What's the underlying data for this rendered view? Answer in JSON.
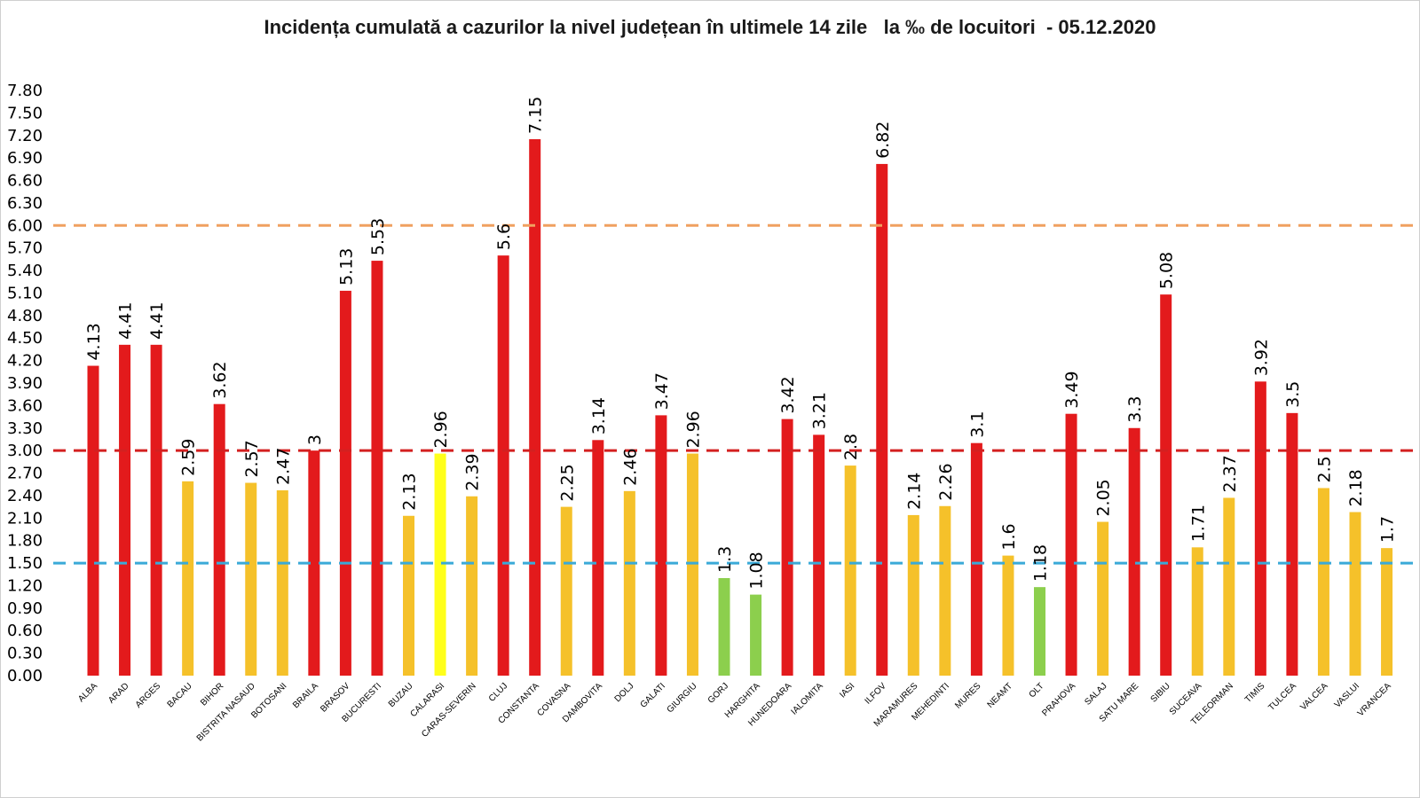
{
  "chart_data": {
    "type": "bar",
    "title": "Incidența cumulată a cazurilor la nivel județean în ultimele 14 zile   la ‰ de locuitori  - 05.12.2020",
    "xlabel": "",
    "ylabel": "",
    "ylim": [
      0,
      7.8
    ],
    "yticks": [
      "0.00",
      "0.30",
      "0.60",
      "0.90",
      "1.20",
      "1.50",
      "1.80",
      "2.10",
      "2.40",
      "2.70",
      "3.00",
      "3.30",
      "3.60",
      "3.90",
      "4.20",
      "4.50",
      "4.80",
      "5.10",
      "5.40",
      "5.70",
      "6.00",
      "6.30",
      "6.60",
      "6.90",
      "7.20",
      "7.50",
      "7.80"
    ],
    "grid": false,
    "categories": [
      "ALBA",
      "ARAD",
      "ARGES",
      "BACAU",
      "BIHOR",
      "BISTRITA NASAUD",
      "BOTOSANI",
      "BRAILA",
      "BRASOV",
      "BUCURESTI",
      "BUZAU",
      "CALARASI",
      "CARAS-SEVERIN",
      "CLUJ",
      "CONSTANTA",
      "COVASNA",
      "DAMBOVITA",
      "DOLJ",
      "GALATI",
      "GIURGIU",
      "GORJ",
      "HARGHITA",
      "HUNEDOARA",
      "IALOMITA",
      "IASI",
      "ILFOV",
      "MARAMURES",
      "MEHEDINTI",
      "MURES",
      "NEAMT",
      "OLT",
      "PRAHOVA",
      "SALAJ",
      "SATU MARE",
      "SIBIU",
      "SUCEAVA",
      "TELEORMAN",
      "TIMIS",
      "TULCEA",
      "VALCEA",
      "VASLUI",
      "VRANCEA"
    ],
    "values": [
      4.13,
      4.41,
      4.41,
      2.59,
      3.62,
      2.57,
      2.47,
      3,
      5.13,
      5.53,
      2.13,
      2.96,
      2.39,
      5.6,
      7.15,
      2.25,
      3.14,
      2.46,
      3.47,
      2.96,
      1.3,
      1.08,
      3.42,
      3.21,
      2.8,
      6.82,
      2.14,
      2.26,
      3.1,
      1.6,
      1.18,
      3.49,
      2.05,
      3.3,
      5.08,
      1.71,
      2.37,
      3.92,
      3.5,
      2.5,
      2.18,
      1.7
    ],
    "value_labels": [
      "4.13",
      "4.41",
      "4.41",
      "2.59",
      "3.62",
      "2.57",
      "2.47",
      "3",
      "5.13",
      "5.53",
      "2.13",
      "2.96",
      "2.39",
      "5.6",
      "7.15",
      "2.25",
      "3.14",
      "2.46",
      "3.47",
      "2.96",
      "1.3",
      "1.08",
      "3.42",
      "3.21",
      "2.8",
      "6.82",
      "2.14",
      "2.26",
      "3.1",
      "1.6",
      "1.18",
      "3.49",
      "2.05",
      "3.3",
      "5.08",
      "1.71",
      "2.37",
      "3.92",
      "3.5",
      "2.5",
      "2.18",
      "1.7"
    ],
    "bar_colors": [
      "#e31a1c",
      "#e31a1c",
      "#e31a1c",
      "#f5c12a",
      "#e31a1c",
      "#f5c12a",
      "#f5c12a",
      "#e31a1c",
      "#e31a1c",
      "#e31a1c",
      "#f5c12a",
      "#ffff1a",
      "#f5c12a",
      "#e31a1c",
      "#e31a1c",
      "#f5c12a",
      "#e31a1c",
      "#f5c12a",
      "#e31a1c",
      "#f5c12a",
      "#8ccf4d",
      "#8ccf4d",
      "#e31a1c",
      "#e31a1c",
      "#f5c12a",
      "#e31a1c",
      "#f5c12a",
      "#f5c12a",
      "#e31a1c",
      "#f5c12a",
      "#8ccf4d",
      "#e31a1c",
      "#f5c12a",
      "#e31a1c",
      "#e31a1c",
      "#f5c12a",
      "#f5c12a",
      "#e31a1c",
      "#e31a1c",
      "#f5c12a",
      "#f5c12a",
      "#f5c12a"
    ],
    "reference_lines": [
      {
        "value": 6.0,
        "color": "#f0a060"
      },
      {
        "value": 3.0,
        "color": "#d42020"
      },
      {
        "value": 1.5,
        "color": "#3aaad8"
      }
    ]
  }
}
